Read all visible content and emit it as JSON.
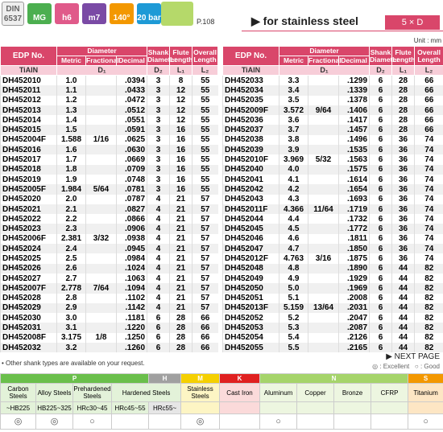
{
  "header": {
    "din_top": "DIN",
    "din_bottom": "6537",
    "icons": [
      "MG",
      "h6",
      "m7",
      "140°",
      "20 bar"
    ],
    "page_ref": "P.108",
    "title": "▶ for stainless steel",
    "badge": "5 × D",
    "unit": "Unit : mm"
  },
  "table_header": {
    "edp": "EDP No.",
    "diameter": "Diameter",
    "metric": "Metric",
    "fractional": "Fractional",
    "decimal": "Decimal",
    "shank": "Shank Diameter",
    "flute": "Flute Length",
    "overall": "Overall Length",
    "coating": "TiAlN",
    "d1": "D₁",
    "d2": "D₂",
    "l1": "L₁",
    "l2": "L₂"
  },
  "tables": [
    {
      "rows": [
        [
          "DH452010",
          "1.0",
          null,
          ".0394",
          "3",
          "8",
          "55"
        ],
        [
          "DH452011",
          "1.1",
          null,
          ".0433",
          "3",
          "12",
          "55"
        ],
        [
          "DH452012",
          "1.2",
          null,
          ".0472",
          "3",
          "12",
          "55"
        ],
        [
          "DH452013",
          "1.3",
          null,
          ".0512",
          "3",
          "12",
          "55"
        ],
        [
          "DH452014",
          "1.4",
          null,
          ".0551",
          "3",
          "12",
          "55"
        ],
        [
          "DH452015",
          "1.5",
          null,
          ".0591",
          "3",
          "16",
          "55"
        ],
        [
          "DH452004F",
          "1.588",
          "1/16",
          ".0625",
          "3",
          "16",
          "55"
        ],
        [
          "DH452016",
          "1.6",
          null,
          ".0630",
          "3",
          "16",
          "55"
        ],
        [
          "DH452017",
          "1.7",
          null,
          ".0669",
          "3",
          "16",
          "55"
        ],
        [
          "DH452018",
          "1.8",
          null,
          ".0709",
          "3",
          "16",
          "55"
        ],
        [
          "DH452019",
          "1.9",
          null,
          ".0748",
          "3",
          "16",
          "55"
        ],
        [
          "DH452005F",
          "1.984",
          "5/64",
          ".0781",
          "3",
          "16",
          "55"
        ],
        [
          "DH452020",
          "2.0",
          null,
          ".0787",
          "4",
          "21",
          "57"
        ],
        [
          "DH452021",
          "2.1",
          null,
          ".0827",
          "4",
          "21",
          "57"
        ],
        [
          "DH452022",
          "2.2",
          null,
          ".0866",
          "4",
          "21",
          "57"
        ],
        [
          "DH452023",
          "2.3",
          null,
          ".0906",
          "4",
          "21",
          "57"
        ],
        [
          "DH452006F",
          "2.381",
          "3/32",
          ".0938",
          "4",
          "21",
          "57"
        ],
        [
          "DH452024",
          "2.4",
          null,
          ".0945",
          "4",
          "21",
          "57"
        ],
        [
          "DH452025",
          "2.5",
          null,
          ".0984",
          "4",
          "21",
          "57"
        ],
        [
          "DH452026",
          "2.6",
          null,
          ".1024",
          "4",
          "21",
          "57"
        ],
        [
          "DH452027",
          "2.7",
          null,
          ".1063",
          "4",
          "21",
          "57"
        ],
        [
          "DH452007F",
          "2.778",
          "7/64",
          ".1094",
          "4",
          "21",
          "57"
        ],
        [
          "DH452028",
          "2.8",
          null,
          ".1102",
          "4",
          "21",
          "57"
        ],
        [
          "DH452029",
          "2.9",
          null,
          ".1142",
          "4",
          "21",
          "57"
        ],
        [
          "DH452030",
          "3.0",
          null,
          ".1181",
          "6",
          "28",
          "66"
        ],
        [
          "DH452031",
          "3.1",
          null,
          ".1220",
          "6",
          "28",
          "66"
        ],
        [
          "DH452008F",
          "3.175",
          "1/8",
          ".1250",
          "6",
          "28",
          "66"
        ],
        [
          "DH452032",
          "3.2",
          null,
          ".1260",
          "6",
          "28",
          "66"
        ]
      ]
    },
    {
      "rows": [
        [
          "DH452033",
          "3.3",
          null,
          ".1299",
          "6",
          "28",
          "66"
        ],
        [
          "DH452034",
          "3.4",
          null,
          ".1339",
          "6",
          "28",
          "66"
        ],
        [
          "DH452035",
          "3.5",
          null,
          ".1378",
          "6",
          "28",
          "66"
        ],
        [
          "DH452009F",
          "3.572",
          "9/64",
          ".1406",
          "6",
          "28",
          "66"
        ],
        [
          "DH452036",
          "3.6",
          null,
          ".1417",
          "6",
          "28",
          "66"
        ],
        [
          "DH452037",
          "3.7",
          null,
          ".1457",
          "6",
          "28",
          "66"
        ],
        [
          "DH452038",
          "3.8",
          null,
          ".1496",
          "6",
          "36",
          "74"
        ],
        [
          "DH452039",
          "3.9",
          null,
          ".1535",
          "6",
          "36",
          "74"
        ],
        [
          "DH452010F",
          "3.969",
          "5/32",
          ".1563",
          "6",
          "36",
          "74"
        ],
        [
          "DH452040",
          "4.0",
          null,
          ".1575",
          "6",
          "36",
          "74"
        ],
        [
          "DH452041",
          "4.1",
          null,
          ".1614",
          "6",
          "36",
          "74"
        ],
        [
          "DH452042",
          "4.2",
          null,
          ".1654",
          "6",
          "36",
          "74"
        ],
        [
          "DH452043",
          "4.3",
          null,
          ".1693",
          "6",
          "36",
          "74"
        ],
        [
          "DH452011F",
          "4.366",
          "11/64",
          ".1719",
          "6",
          "36",
          "74"
        ],
        [
          "DH452044",
          "4.4",
          null,
          ".1732",
          "6",
          "36",
          "74"
        ],
        [
          "DH452045",
          "4.5",
          null,
          ".1772",
          "6",
          "36",
          "74"
        ],
        [
          "DH452046",
          "4.6",
          null,
          ".1811",
          "6",
          "36",
          "74"
        ],
        [
          "DH452047",
          "4.7",
          null,
          ".1850",
          "6",
          "36",
          "74"
        ],
        [
          "DH452012F",
          "4.763",
          "3/16",
          ".1875",
          "6",
          "36",
          "74"
        ],
        [
          "DH452048",
          "4.8",
          null,
          ".1890",
          "6",
          "44",
          "82"
        ],
        [
          "DH452049",
          "4.9",
          null,
          ".1929",
          "6",
          "44",
          "82"
        ],
        [
          "DH452050",
          "5.0",
          null,
          ".1969",
          "6",
          "44",
          "82"
        ],
        [
          "DH452051",
          "5.1",
          null,
          ".2008",
          "6",
          "44",
          "82"
        ],
        [
          "DH452013F",
          "5.159",
          "13/64",
          ".2031",
          "6",
          "44",
          "82"
        ],
        [
          "DH452052",
          "5.2",
          null,
          ".2047",
          "6",
          "44",
          "82"
        ],
        [
          "DH452053",
          "5.3",
          null,
          ".2087",
          "6",
          "44",
          "82"
        ],
        [
          "DH452054",
          "5.4",
          null,
          ".2126",
          "6",
          "44",
          "82"
        ],
        [
          "DH452055",
          "5.5",
          null,
          ".2165",
          "6",
          "44",
          "82"
        ]
      ]
    }
  ],
  "footer": {
    "next_page": "▶ NEXT PAGE",
    "note": "• Other shank types are available on your request.",
    "legend": "◎ : Excellent   ○ : Good"
  },
  "materials": {
    "groups": [
      "P",
      "H",
      "M",
      "K",
      "N",
      "S"
    ],
    "names": [
      "Carbon Steels",
      "Alloy Steels",
      "Prehardened Steels",
      "Hardened Steels",
      "Stainless Steels",
      "Cast Iron",
      "Aluminum",
      "Copper",
      "Bronze",
      "CFRP",
      "Titanium"
    ],
    "hardness": [
      "~HB225",
      "HB225~325",
      "HRc30~45",
      "HRc45~55",
      "HRc55~"
    ],
    "ratings": [
      "◎",
      "◎",
      "○",
      null,
      null,
      "◎",
      null,
      "○",
      null,
      null,
      null,
      "○"
    ]
  }
}
